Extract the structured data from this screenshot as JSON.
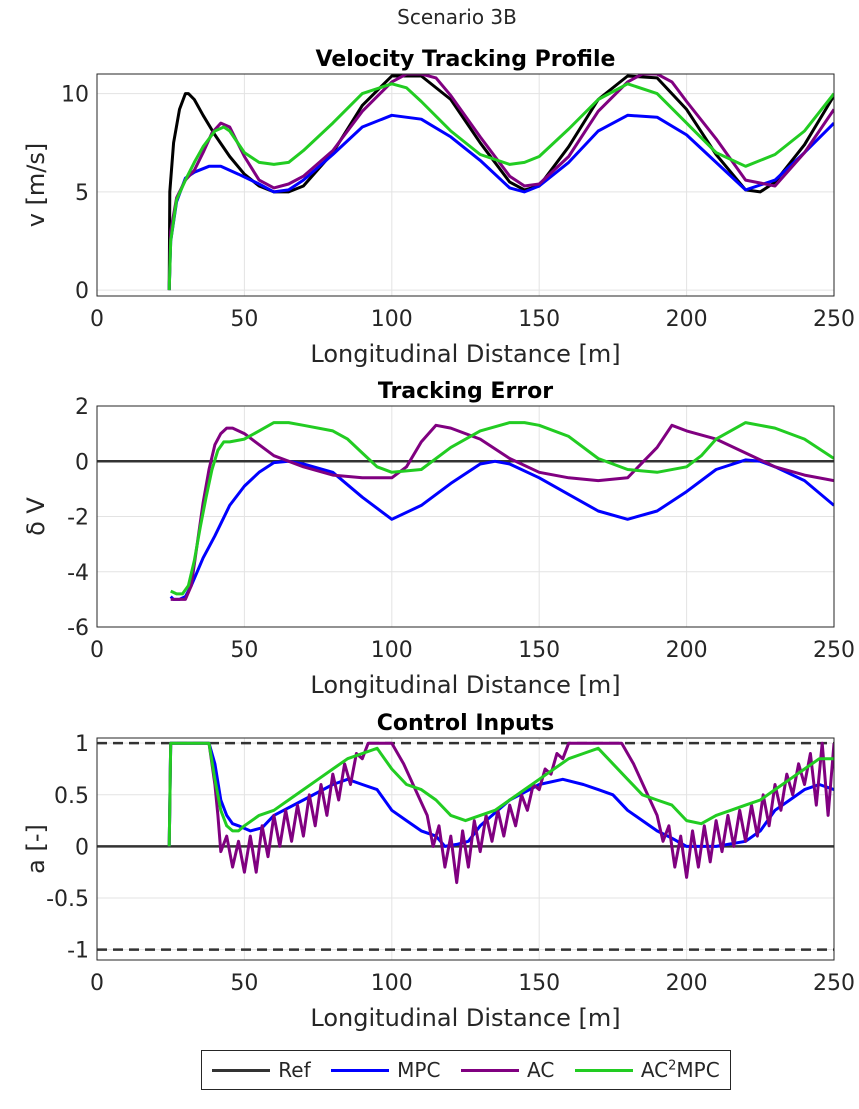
{
  "figure_title": "Scenario 3B",
  "chart_data": [
    {
      "type": "line",
      "title": "Velocity Tracking Profile",
      "xlabel": "Longitudinal Distance [m]",
      "ylabel": "v [m/s]",
      "xlim": [
        0,
        250
      ],
      "ylim": [
        -0.3,
        11
      ],
      "xticks": [
        0,
        50,
        100,
        150,
        200,
        250
      ],
      "yticks": [
        0,
        5,
        10
      ],
      "hlines": [],
      "series": [
        {
          "name": "Ref",
          "color": "#000000",
          "x": [
            24.5,
            24.7,
            25,
            26,
            28,
            30,
            31,
            33,
            36,
            40,
            45,
            50,
            55,
            60,
            65,
            70,
            80,
            90,
            100,
            110,
            120,
            130,
            140,
            145,
            150,
            160,
            170,
            180,
            190,
            200,
            210,
            220,
            225,
            230,
            240,
            250
          ],
          "y": [
            0,
            5.0,
            5.6,
            7.5,
            9.2,
            10.0,
            10.0,
            9.7,
            8.9,
            7.9,
            6.8,
            5.9,
            5.3,
            5.0,
            5.0,
            5.3,
            7.0,
            9.4,
            10.9,
            10.9,
            9.7,
            7.5,
            5.5,
            5.1,
            5.3,
            7.3,
            9.7,
            10.9,
            10.8,
            9.2,
            6.9,
            5.1,
            5.0,
            5.5,
            7.4,
            9.9
          ]
        },
        {
          "name": "MPC",
          "color": "#0000ff",
          "x": [
            24.5,
            25,
            27,
            30,
            33,
            38,
            42,
            48,
            55,
            60,
            65,
            70,
            80,
            90,
            100,
            110,
            120,
            130,
            140,
            145,
            150,
            160,
            170,
            180,
            190,
            200,
            210,
            220,
            230,
            240,
            250
          ],
          "y": [
            0,
            2.5,
            4.5,
            5.7,
            6.0,
            6.3,
            6.3,
            5.9,
            5.4,
            5.0,
            5.1,
            5.6,
            6.9,
            8.3,
            8.9,
            8.7,
            7.8,
            6.6,
            5.2,
            5.0,
            5.3,
            6.5,
            8.1,
            8.9,
            8.8,
            7.9,
            6.5,
            5.1,
            5.6,
            7.0,
            8.5
          ]
        },
        {
          "name": "AC",
          "color": "#800080",
          "x": [
            24.5,
            25,
            27,
            30,
            33,
            36,
            39,
            42,
            45,
            50,
            55,
            60,
            65,
            70,
            80,
            90,
            100,
            105,
            110,
            115,
            120,
            130,
            140,
            145,
            150,
            160,
            170,
            180,
            185,
            190,
            195,
            200,
            210,
            220,
            230,
            240,
            250
          ],
          "y": [
            0,
            3.0,
            4.7,
            5.6,
            6.1,
            7.0,
            8.0,
            8.5,
            8.3,
            6.8,
            5.6,
            5.2,
            5.4,
            5.8,
            7.1,
            9.1,
            10.6,
            11.0,
            11.0,
            10.8,
            9.9,
            7.8,
            5.8,
            5.3,
            5.4,
            6.8,
            9.1,
            10.6,
            11.0,
            11.0,
            10.6,
            9.6,
            7.7,
            5.6,
            5.3,
            7.0,
            9.2
          ]
        },
        {
          "name": "AC²MPC",
          "color": "#22cc22",
          "x": [
            24.5,
            25,
            27,
            30,
            33,
            36,
            40,
            43,
            45,
            50,
            55,
            60,
            65,
            70,
            80,
            90,
            100,
            105,
            110,
            120,
            130,
            140,
            145,
            150,
            160,
            170,
            180,
            190,
            200,
            210,
            220,
            230,
            240,
            250
          ],
          "y": [
            0,
            2.5,
            4.6,
            5.6,
            6.5,
            7.3,
            8.1,
            8.3,
            8.1,
            7.0,
            6.5,
            6.4,
            6.5,
            7.1,
            8.5,
            10.0,
            10.5,
            10.3,
            9.6,
            8.1,
            6.9,
            6.4,
            6.5,
            6.8,
            8.2,
            9.7,
            10.5,
            10.0,
            8.5,
            7.0,
            6.3,
            6.9,
            8.1,
            10.0
          ]
        }
      ]
    },
    {
      "type": "line",
      "title": "Tracking Error",
      "xlabel": "Longitudinal Distance [m]",
      "ylabel": "δ V",
      "xlim": [
        0,
        250
      ],
      "ylim": [
        -6,
        2
      ],
      "xticks": [
        0,
        50,
        100,
        150,
        200,
        250
      ],
      "yticks": [
        -6,
        -4,
        -2,
        0,
        2
      ],
      "hlines": [
        {
          "y": 0,
          "color": "#333333",
          "dash": ""
        }
      ],
      "series": [
        {
          "name": "MPC",
          "color": "#0000ff",
          "x": [
            25,
            26,
            28,
            30,
            32,
            34,
            36,
            38,
            40,
            45,
            50,
            55,
            60,
            65,
            70,
            80,
            90,
            100,
            110,
            120,
            130,
            135,
            140,
            150,
            160,
            170,
            180,
            190,
            200,
            210,
            220,
            225,
            230,
            240,
            250
          ],
          "y": [
            -4.9,
            -5.0,
            -5.0,
            -4.9,
            -4.5,
            -4.0,
            -3.5,
            -3.1,
            -2.7,
            -1.6,
            -0.9,
            -0.4,
            -0.05,
            0.0,
            -0.1,
            -0.4,
            -1.3,
            -2.1,
            -1.6,
            -0.8,
            -0.1,
            0.0,
            -0.1,
            -0.6,
            -1.2,
            -1.8,
            -2.1,
            -1.8,
            -1.1,
            -0.3,
            0.05,
            0.0,
            -0.2,
            -0.7,
            -1.6
          ]
        },
        {
          "name": "AC",
          "color": "#800080",
          "x": [
            25,
            28,
            30,
            32,
            34,
            36,
            38,
            40,
            42,
            44,
            46,
            48,
            50,
            55,
            60,
            70,
            80,
            90,
            100,
            105,
            110,
            115,
            120,
            130,
            140,
            150,
            160,
            170,
            180,
            190,
            195,
            200,
            210,
            220,
            230,
            240,
            250
          ],
          "y": [
            -5.0,
            -5.0,
            -5.0,
            -4.5,
            -3.0,
            -1.5,
            -0.3,
            0.6,
            1.0,
            1.2,
            1.2,
            1.1,
            1.0,
            0.6,
            0.2,
            -0.2,
            -0.5,
            -0.6,
            -0.6,
            -0.2,
            0.7,
            1.3,
            1.2,
            0.8,
            0.1,
            -0.4,
            -0.6,
            -0.7,
            -0.6,
            0.5,
            1.3,
            1.1,
            0.8,
            0.3,
            -0.2,
            -0.5,
            -0.7
          ]
        },
        {
          "name": "AC²MPC",
          "color": "#22cc22",
          "x": [
            25,
            27,
            29,
            31,
            33,
            35,
            37,
            39,
            41,
            43,
            45,
            50,
            55,
            60,
            65,
            70,
            80,
            85,
            90,
            95,
            100,
            110,
            120,
            130,
            140,
            145,
            150,
            160,
            170,
            180,
            190,
            200,
            205,
            210,
            220,
            230,
            240,
            250
          ],
          "y": [
            -4.7,
            -4.8,
            -4.8,
            -4.5,
            -3.6,
            -2.4,
            -1.3,
            -0.3,
            0.4,
            0.7,
            0.7,
            0.8,
            1.1,
            1.4,
            1.4,
            1.3,
            1.1,
            0.8,
            0.3,
            -0.2,
            -0.4,
            -0.3,
            0.5,
            1.1,
            1.4,
            1.4,
            1.3,
            0.9,
            0.1,
            -0.3,
            -0.4,
            -0.2,
            0.2,
            0.8,
            1.4,
            1.2,
            0.8,
            0.1
          ]
        }
      ]
    },
    {
      "type": "line",
      "title": "Control Inputs",
      "xlabel": "Longitudinal Distance [m]",
      "ylabel": "a [-]",
      "xlim": [
        0,
        250
      ],
      "ylim": [
        -1.1,
        1.05
      ],
      "xticks": [
        0,
        50,
        100,
        150,
        200,
        250
      ],
      "yticks": [
        -1,
        -0.5,
        0,
        0.5,
        1
      ],
      "hlines": [
        {
          "y": 1,
          "color": "#333333",
          "dash": "10,6"
        },
        {
          "y": -1,
          "color": "#333333",
          "dash": "10,6"
        },
        {
          "y": 0,
          "color": "#333333",
          "dash": ""
        }
      ],
      "series": [
        {
          "name": "MPC",
          "color": "#0000ff",
          "x": [
            24.5,
            25,
            30,
            38,
            40,
            42,
            44,
            46,
            48,
            52,
            56,
            60,
            70,
            80,
            85,
            90,
            95,
            100,
            105,
            110,
            115,
            118,
            122,
            126,
            130,
            140,
            150,
            158,
            165,
            170,
            175,
            180,
            185,
            190,
            195,
            200,
            210,
            220,
            225,
            230,
            235,
            240,
            245,
            250
          ],
          "y": [
            0,
            1.0,
            1.0,
            1.0,
            0.8,
            0.45,
            0.3,
            0.22,
            0.2,
            0.15,
            0.18,
            0.3,
            0.45,
            0.6,
            0.65,
            0.6,
            0.55,
            0.35,
            0.25,
            0.15,
            0.1,
            0.0,
            0.02,
            0.05,
            0.2,
            0.45,
            0.6,
            0.65,
            0.6,
            0.55,
            0.5,
            0.35,
            0.25,
            0.15,
            0.08,
            0.0,
            0.0,
            0.05,
            0.15,
            0.35,
            0.45,
            0.55,
            0.6,
            0.55
          ]
        },
        {
          "name": "AC",
          "color": "#800080",
          "x": [
            24.5,
            25,
            30,
            38,
            40,
            41,
            42,
            44,
            46,
            48,
            50,
            52,
            54,
            56,
            58,
            60,
            62,
            64,
            66,
            68,
            70,
            72,
            74,
            76,
            78,
            80,
            82,
            84,
            86,
            88,
            90,
            92,
            95,
            100,
            104,
            108,
            112,
            114,
            116,
            118,
            120,
            122,
            124,
            126,
            128,
            130,
            132,
            134,
            136,
            138,
            140,
            142,
            144,
            146,
            148,
            150,
            152,
            154,
            156,
            158,
            160,
            165,
            170,
            178,
            182,
            186,
            190,
            192,
            194,
            196,
            198,
            200,
            202,
            204,
            206,
            208,
            210,
            212,
            214,
            216,
            218,
            220,
            222,
            224,
            226,
            228,
            230,
            232,
            234,
            236,
            238,
            240,
            242,
            244,
            246,
            248,
            250
          ],
          "y": [
            0,
            1.0,
            1.0,
            1.0,
            0.6,
            0.3,
            -0.05,
            0.1,
            -0.2,
            0.05,
            -0.25,
            0.1,
            -0.25,
            0.2,
            -0.1,
            0.3,
            0.0,
            0.35,
            0.05,
            0.4,
            0.1,
            0.5,
            0.2,
            0.6,
            0.3,
            0.7,
            0.45,
            0.8,
            0.6,
            0.9,
            0.85,
            1.0,
            1.0,
            1.0,
            0.8,
            0.55,
            0.3,
            0.0,
            0.2,
            -0.2,
            0.1,
            -0.35,
            0.15,
            -0.2,
            0.25,
            -0.05,
            0.3,
            0.05,
            0.35,
            0.1,
            0.4,
            0.2,
            0.5,
            0.35,
            0.6,
            0.55,
            0.75,
            0.7,
            0.9,
            0.85,
            1.0,
            1.0,
            1.0,
            1.0,
            0.8,
            0.55,
            0.3,
            0.05,
            0.2,
            -0.2,
            0.1,
            -0.3,
            0.15,
            -0.2,
            0.2,
            -0.15,
            0.25,
            -0.05,
            0.3,
            0.0,
            0.35,
            0.05,
            0.4,
            0.1,
            0.5,
            0.2,
            0.6,
            0.35,
            0.7,
            0.5,
            0.8,
            0.6,
            0.9,
            0.4,
            1.0,
            0.3,
            1.0
          ]
        },
        {
          "name": "AC²MPC",
          "color": "#22cc22",
          "x": [
            24.5,
            25,
            30,
            38,
            40,
            42,
            44,
            46,
            48,
            50,
            55,
            60,
            65,
            70,
            75,
            80,
            85,
            90,
            95,
            100,
            105,
            110,
            115,
            120,
            125,
            130,
            135,
            140,
            145,
            150,
            155,
            160,
            165,
            170,
            175,
            180,
            185,
            190,
            195,
            200,
            205,
            210,
            215,
            220,
            225,
            230,
            235,
            240,
            245,
            250
          ],
          "y": [
            0,
            1.0,
            1.0,
            1.0,
            0.65,
            0.35,
            0.2,
            0.15,
            0.15,
            0.2,
            0.3,
            0.35,
            0.45,
            0.55,
            0.65,
            0.75,
            0.85,
            0.9,
            0.95,
            0.75,
            0.6,
            0.55,
            0.45,
            0.3,
            0.25,
            0.3,
            0.35,
            0.45,
            0.55,
            0.65,
            0.75,
            0.85,
            0.9,
            0.95,
            0.8,
            0.65,
            0.5,
            0.45,
            0.4,
            0.25,
            0.22,
            0.3,
            0.35,
            0.4,
            0.45,
            0.55,
            0.65,
            0.75,
            0.85,
            0.85
          ]
        }
      ]
    }
  ],
  "legend": [
    {
      "label": "Ref",
      "color": "#333333"
    },
    {
      "label": "MPC",
      "color": "#0000ff"
    },
    {
      "label": "AC",
      "color": "#800080"
    },
    {
      "label_main": "AC",
      "label_sup": "2",
      "label_tail": "MPC",
      "color": "#22cc22"
    }
  ]
}
